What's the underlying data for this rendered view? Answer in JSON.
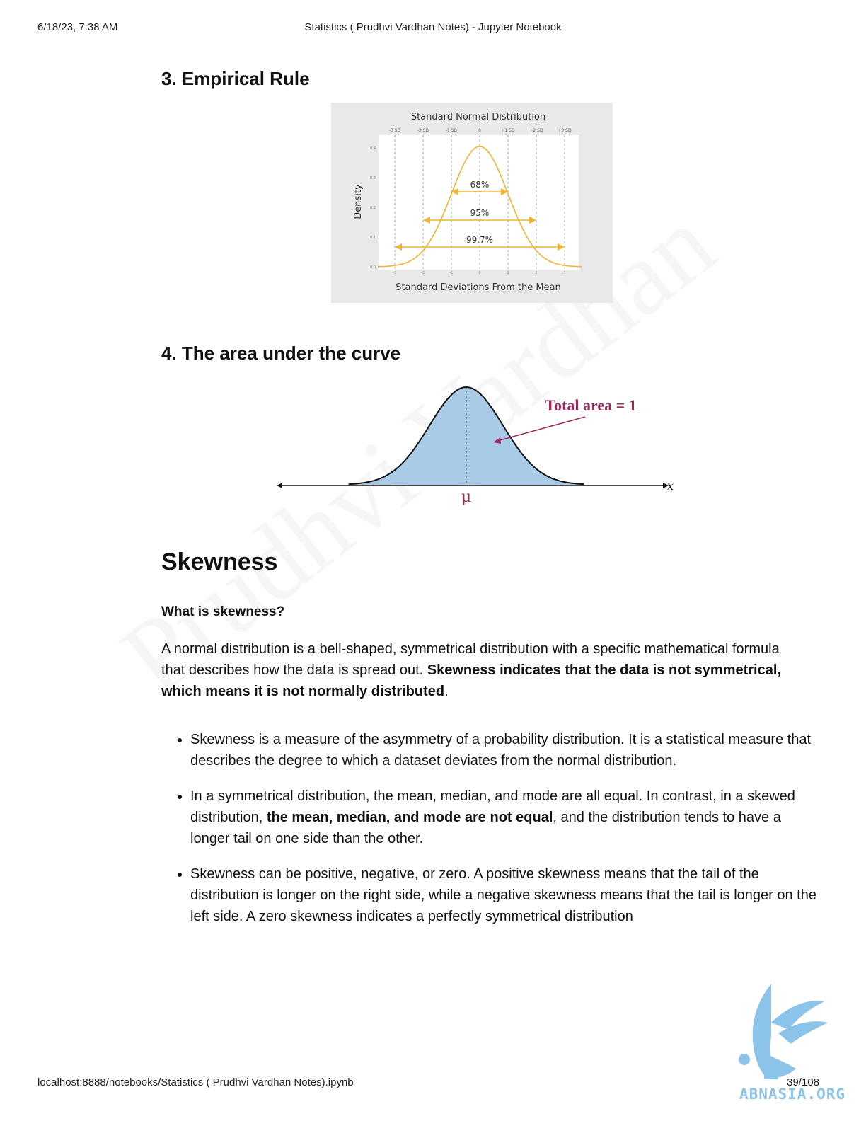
{
  "header": {
    "datetime": "6/18/23, 7:38 AM",
    "title": "Statistics ( Prudhvi Vardhan Notes) - Jupyter Notebook"
  },
  "footer": {
    "url": "localhost:8888/notebooks/Statistics ( Prudhvi Vardhan Notes).ipynb",
    "page": "39/108"
  },
  "watermark": "Prudhvi Vardhan",
  "sections": {
    "empirical_heading": "3. Empirical Rule",
    "area_heading": "4. The area under the curve",
    "skewness_heading": "Skewness",
    "what_is": "What is skewness?"
  },
  "figure_empirical": {
    "title": "Standard Normal Distribution",
    "ylabel": "Density",
    "xlabel": "Standard Deviations From the Mean",
    "top_ticks": [
      "-3 SD",
      "-2 SD",
      "-1 SD",
      "0",
      "+1 SD",
      "+2 SD",
      "+3 SD"
    ],
    "bottom_ticks": [
      "-3",
      "-2",
      "-1",
      "0",
      "1",
      "2",
      "3"
    ],
    "y_ticks": [
      "0.0",
      "0.1",
      "0.2",
      "0.3",
      "0.4"
    ],
    "ranges": [
      {
        "label": "68%",
        "from": -1,
        "to": 1
      },
      {
        "label": "95%",
        "from": -2,
        "to": 2
      },
      {
        "label": "99.7%",
        "from": -3,
        "to": 3
      }
    ],
    "curve_color": "#f4b233"
  },
  "figure_area": {
    "label": "Total area = 1",
    "mu": "μ",
    "x": "x",
    "fill_color": "#a9cbe8",
    "label_color": "#9b2c5c"
  },
  "intro": {
    "t1": "A normal distribution is a bell-shaped, symmetrical distribution with a specific mathematical formula that describes how the data is spread out. ",
    "t2": "Skewness indicates that the data is not symmetrical, which means it is not normally distributed",
    "t3": "."
  },
  "bullets": {
    "b1": "Skewness is a measure of the asymmetry of a probability distribution. It is a statistical measure that describes the degree to which a dataset deviates from the normal distribution.",
    "b2a": "In a symmetrical distribution, the mean, median, and mode are all equal. In contrast, in a skewed distribution, ",
    "b2b": "the mean, median, and mode are not equal",
    "b2c": ", and the distribution tends to have a longer tail on one side than the other.",
    "b3": "Skewness can be positive, negative, or zero. A positive skewness means that the tail of the distribution is longer on the right side, while a negative skewness means that the tail is longer on the left side. A zero skewness indicates a perfectly symmetrical distribution"
  },
  "logo": {
    "text": "ABNASIA.ORG",
    "color": "#8cc3e8"
  }
}
